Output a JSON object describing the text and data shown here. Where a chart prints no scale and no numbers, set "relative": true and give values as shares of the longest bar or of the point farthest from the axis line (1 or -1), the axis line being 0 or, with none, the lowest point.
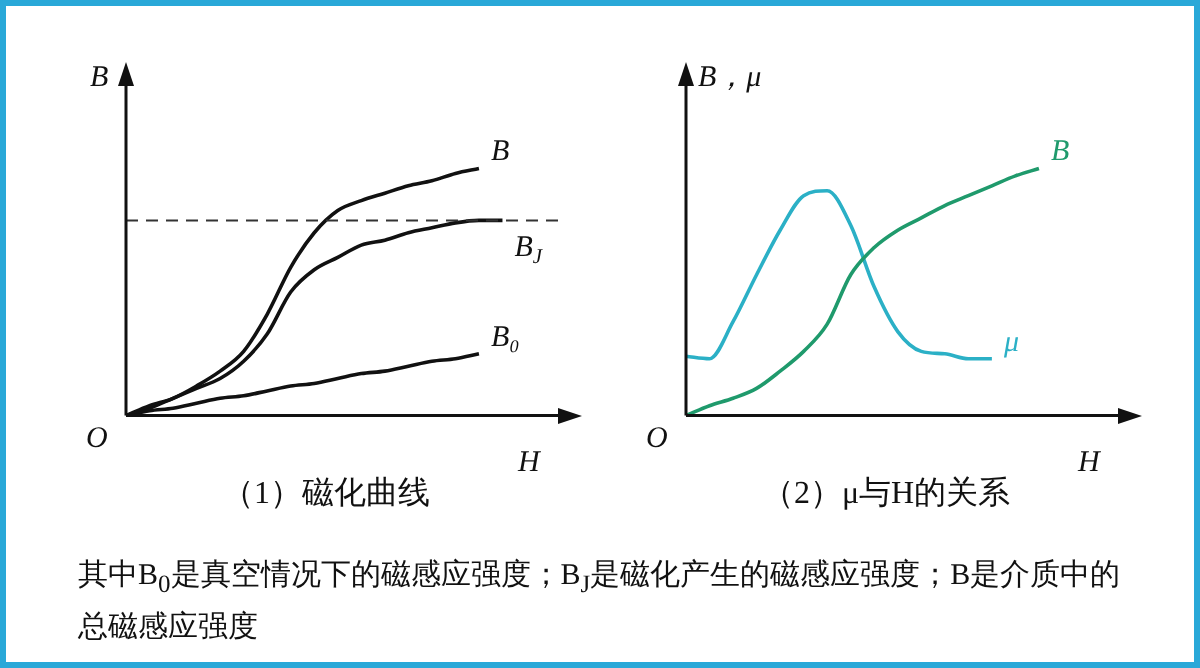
{
  "chart_data": [
    {
      "type": "line",
      "title": "（1）磁化曲线",
      "xlabel": "H",
      "ylabel": "B",
      "relative": true,
      "marker": "none",
      "line_style": "solid",
      "categories": [
        null,
        null,
        null,
        null,
        null,
        null,
        null,
        null,
        null,
        null,
        null,
        null,
        null,
        null,
        null,
        null,
        null,
        null
      ],
      "series": [
        {
          "name": "B",
          "color": "#111111",
          "values": [
            0,
            0.04,
            0.07,
            0.12,
            0.18,
            0.26,
            0.41,
            0.6,
            0.74,
            0.83,
            0.87,
            0.9,
            0.93,
            0.95,
            0.98,
            1,
            null,
            null
          ]
        },
        {
          "name": "B$_{J}$",
          "color": "#111111",
          "values": [
            0,
            0.03,
            0.07,
            0.11,
            0.15,
            0.22,
            0.33,
            0.5,
            0.59,
            0.64,
            0.69,
            0.71,
            0.74,
            0.76,
            0.78,
            0.79,
            0.79,
            null
          ]
        },
        {
          "name": "B₀",
          "color": "#111111",
          "values": [
            0,
            0.02,
            0.03,
            0.05,
            0.07,
            0.08,
            0.1,
            0.12,
            0.13,
            0.15,
            0.17,
            0.18,
            0.2,
            0.22,
            0.23,
            0.25,
            null,
            null
          ]
        }
      ],
      "ref_lines": [
        {
          "axis": "y",
          "value": 0.79,
          "color": "#333333",
          "line_style": "dashed"
        }
      ],
      "annotations": [
        "O",
        "其中B$_{0}$是真空情况下的磁感应强度；B$_{J}$是磁化产生的磁感应强度；B是介质中的总磁感应强度"
      ]
    },
    {
      "type": "line",
      "title": "（2）μ与H的关系",
      "xlabel": "H",
      "ylabel": "B，μ",
      "relative": true,
      "marker": "none",
      "line_style": "solid",
      "categories": [
        null,
        null,
        null,
        null,
        null,
        null,
        null,
        null,
        null,
        null,
        null,
        null,
        null,
        null,
        null,
        null,
        null,
        null
      ],
      "series": [
        {
          "name": "B",
          "color": "#1f9a6c",
          "values": [
            0,
            0.04,
            0.07,
            0.11,
            0.18,
            0.26,
            0.37,
            0.57,
            0.68,
            0.75,
            0.8,
            0.85,
            0.89,
            0.93,
            0.97,
            1,
            null,
            null
          ]
        },
        {
          "name": "μ",
          "color": "#2bb0c6",
          "values": [
            0.24,
            0.23,
            0.38,
            0.57,
            0.75,
            0.89,
            0.91,
            0.77,
            0.52,
            0.34,
            0.26,
            0.25,
            0.23,
            0.23,
            null,
            null,
            null,
            null
          ]
        }
      ],
      "annotations": [
        "O"
      ]
    }
  ]
}
